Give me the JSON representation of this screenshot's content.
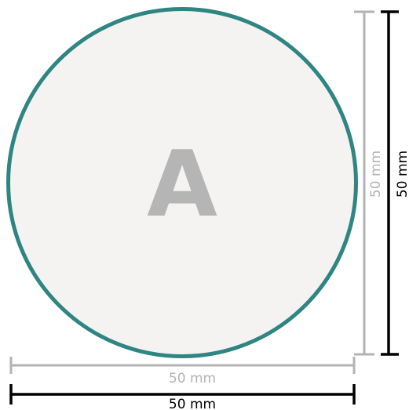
{
  "diagram": {
    "center_letter": "A",
    "outer_width_label": "50 mm",
    "outer_height_label": "50 mm",
    "inner_width_label": "50 mm",
    "inner_height_label": "50 mm",
    "colors": {
      "circle_fill": "#f4f3f1",
      "circle_stroke": "#2e8582",
      "letter": "#b4b5b4",
      "inner_dimension": "#b3b3b3",
      "outer_dimension": "#000000"
    }
  }
}
